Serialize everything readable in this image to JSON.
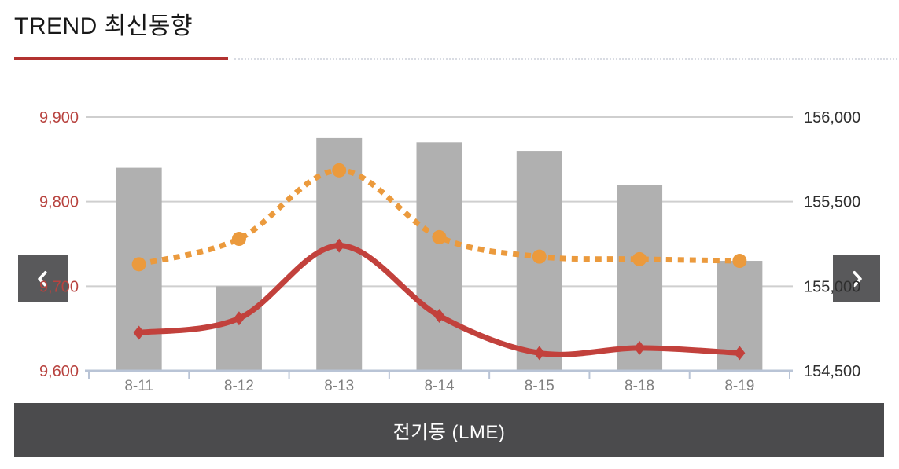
{
  "header": {
    "title": "TREND 최신동향"
  },
  "carousel": {
    "prev_icon": "chevron-left",
    "next_icon": "chevron-right"
  },
  "banner": {
    "label": "전기동 (LME)"
  },
  "colors": {
    "accent_underline": "#b23230",
    "nav_button_bg": "#59595b",
    "banner_bg": "#4b4b4d"
  },
  "chart_data": {
    "type": "combo",
    "title": "전기동 (LME)",
    "categories": [
      "8-11",
      "8-12",
      "8-13",
      "8-14",
      "8-15",
      "8-18",
      "8-19"
    ],
    "series": [
      {
        "name": "daily-bars",
        "type": "bar",
        "axis": "left",
        "color": "#b0b0b0",
        "values": [
          9840,
          9700,
          9875,
          9870,
          9860,
          9820,
          9730
        ]
      },
      {
        "name": "solid-line",
        "type": "line",
        "line_style": "solid",
        "marker": "diamond",
        "axis": "left",
        "color": "#c2413c",
        "values": [
          9645,
          9662,
          9748,
          9665,
          9621,
          9627,
          9621
        ]
      },
      {
        "name": "dotted-line",
        "type": "line",
        "line_style": "dotted",
        "marker": "circle",
        "axis": "right",
        "color": "#eb9a3d",
        "values": [
          155130,
          155280,
          155685,
          155290,
          155175,
          155160,
          155150
        ]
      }
    ],
    "axes": {
      "left": {
        "min": 9600,
        "max": 9900,
        "step": 100,
        "tick_labels_top_to_bottom": [
          "9,900",
          "9,800",
          "9,700",
          "9,600"
        ],
        "label_color": "#b8433f"
      },
      "right": {
        "min": 154500,
        "max": 156000,
        "step": 500,
        "tick_labels_top_to_bottom": [
          "156,000",
          "155,500",
          "155,000",
          "154,500"
        ],
        "label_color": "#2f2f2f"
      },
      "x": {
        "label_color": "#7f7f7f",
        "line_color": "#b9c4d6"
      }
    },
    "grid": true,
    "gridline_color": "#cfcfcf",
    "legend": false
  }
}
